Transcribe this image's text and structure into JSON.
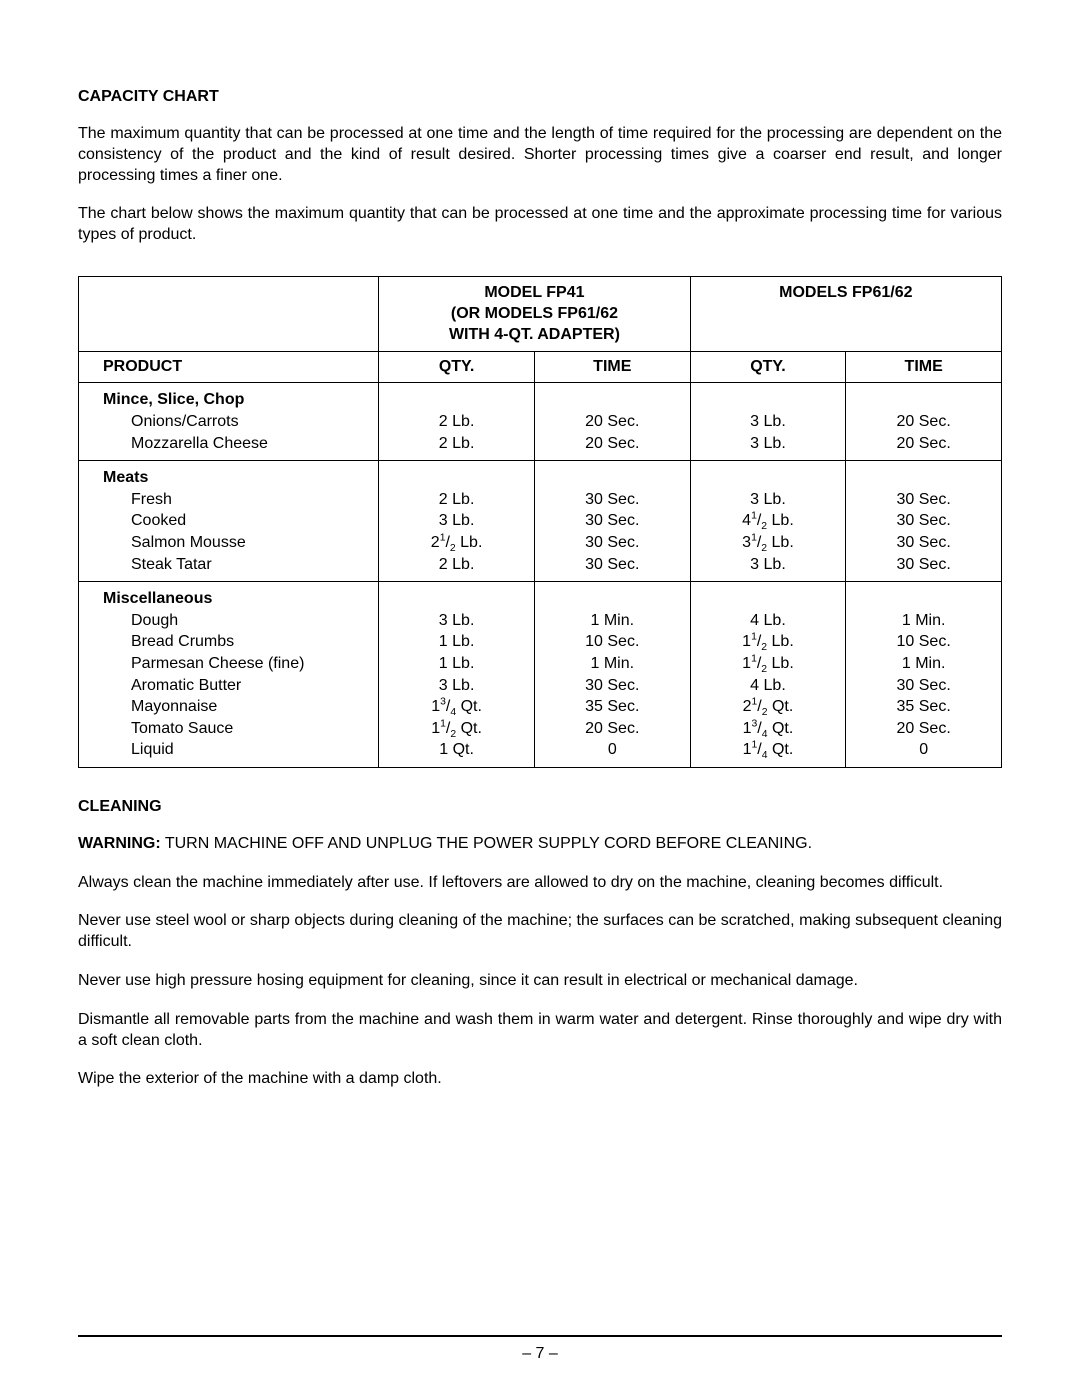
{
  "sections": {
    "capacity_heading": "CAPACITY CHART",
    "capacity_para1": "The maximum quantity that can be processed at one time and the length of time required for the processing are dependent on the consistency of the product and the kind of result desired.  Shorter processing times give a coarser end result, and longer processing times a finer one.",
    "capacity_para2": "The chart below shows the maximum quantity that can be processed at one time and the approximate processing time for various types of product.",
    "cleaning_heading": "CLEANING",
    "warning_label": "WARNING:",
    "warning_text": "  TURN MACHINE OFF AND UNPLUG THE POWER SUPPLY CORD BEFORE CLEANING.",
    "cleaning_para1": "Always clean the machine immediately after use.  If leftovers are allowed to dry on the machine, cleaning becomes difficult.",
    "cleaning_para2": "Never use steel wool or sharp objects during cleaning of the machine; the surfaces can be scratched, making subsequent cleaning difficult.",
    "cleaning_para3": "Never use high pressure hosing equipment for cleaning, since it can result in electrical or mechanical damage.",
    "cleaning_para4": "Dismantle all removable parts from the machine and wash them in warm water and detergent.  Rinse thoroughly and wipe dry with a soft clean cloth.",
    "cleaning_para5": "Wipe the exterior of the machine with a damp cloth."
  },
  "table": {
    "model1_line1": "MODEL FP41",
    "model1_line2": "(OR MODELS FP61/62",
    "model1_line3": "WITH 4-QT. ADAPTER)",
    "model2": "MODELS FP61/62",
    "col_product": "PRODUCT",
    "col_qty": "QTY.",
    "col_time": "TIME",
    "groups": [
      {
        "title": "Mince, Slice, Chop",
        "rows": [
          {
            "p": "Onions/Carrots",
            "q1": "2 Lb.",
            "t1": "20 Sec.",
            "q2": "3 Lb.",
            "t2": "20 Sec."
          },
          {
            "p": "Mozzarella Cheese",
            "q1": "2 Lb.",
            "t1": "20 Sec.",
            "q2": "3 Lb.",
            "t2": "20 Sec."
          }
        ]
      },
      {
        "title": "Meats",
        "rows": [
          {
            "p": "Fresh",
            "q1": "2 Lb.",
            "t1": "30 Sec.",
            "q2": "3 Lb.",
            "t2": "30 Sec."
          },
          {
            "p": "Cooked",
            "q1": "3 Lb.",
            "t1": "30 Sec.",
            "q2": "4½ Lb.",
            "t2": "30 Sec."
          },
          {
            "p": "Salmon Mousse",
            "q1": "2½ Lb.",
            "t1": "30 Sec.",
            "q2": "3½ Lb.",
            "t2": "30 Sec."
          },
          {
            "p": "Steak Tatar",
            "q1": "2 Lb.",
            "t1": "30 Sec.",
            "q2": "3 Lb.",
            "t2": "30 Sec."
          }
        ]
      },
      {
        "title": "Miscellaneous",
        "rows": [
          {
            "p": "Dough",
            "q1": "3 Lb.",
            "t1": "1 Min.",
            "q2": "4 Lb.",
            "t2": "1 Min."
          },
          {
            "p": "Bread Crumbs",
            "q1": "1 Lb.",
            "t1": "10 Sec.",
            "q2": "1½ Lb.",
            "t2": "10 Sec."
          },
          {
            "p": "Parmesan Cheese (fine)",
            "q1": "1 Lb.",
            "t1": "1 Min.",
            "q2": "1½ Lb.",
            "t2": "1 Min."
          },
          {
            "p": "Aromatic Butter",
            "q1": "3 Lb.",
            "t1": "30 Sec.",
            "q2": "4 Lb.",
            "t2": "30 Sec."
          },
          {
            "p": "Mayonnaise",
            "q1": "1¾ Qt.",
            "t1": "35 Sec.",
            "q2": "2½ Qt.",
            "t2": "35 Sec."
          },
          {
            "p": "Tomato Sauce",
            "q1": "1½ Qt.",
            "t1": "20 Sec.",
            "q2": "1¾ Qt.",
            "t2": "20 Sec."
          },
          {
            "p": "Liquid",
            "q1": "1 Qt.",
            "t1": "0",
            "q2": "1¼ Qt.",
            "t2": "0"
          }
        ]
      }
    ]
  },
  "page_number": "– 7 –"
}
